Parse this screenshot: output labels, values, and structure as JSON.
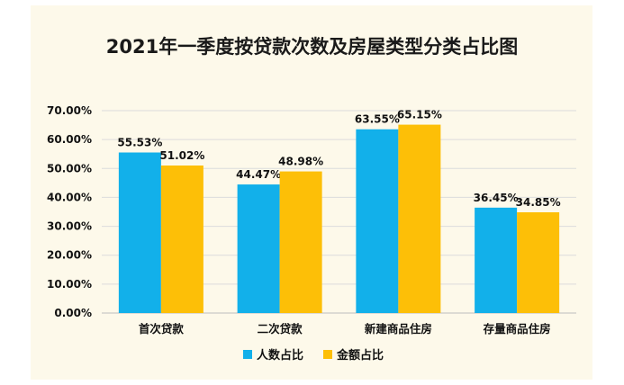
{
  "chart_data": {
    "type": "bar",
    "title": "2021年一季度按贷款次数及房屋类型分类占比图",
    "categories": [
      "首次贷款",
      "二次贷款",
      "新建商品住房",
      "存量商品住房"
    ],
    "series": [
      {
        "name": "人数占比",
        "values": [
          55.53,
          44.47,
          63.55,
          36.45
        ],
        "labels": [
          "55.53%",
          "44.47%",
          "63.55%",
          "36.45%"
        ],
        "color": "#12b0ea"
      },
      {
        "name": "金额占比",
        "values": [
          51.02,
          48.98,
          65.15,
          34.85
        ],
        "labels": [
          "51.02%",
          "48.98%",
          "65.15%",
          "34.85%"
        ],
        "color": "#fdbf07"
      }
    ],
    "yticks": [
      "0.00%",
      "10.00%",
      "20.00%",
      "30.00%",
      "40.00%",
      "50.00%",
      "60.00%",
      "70.00%"
    ],
    "ylim": [
      0,
      70
    ],
    "grid": true,
    "legend": "bottom"
  }
}
